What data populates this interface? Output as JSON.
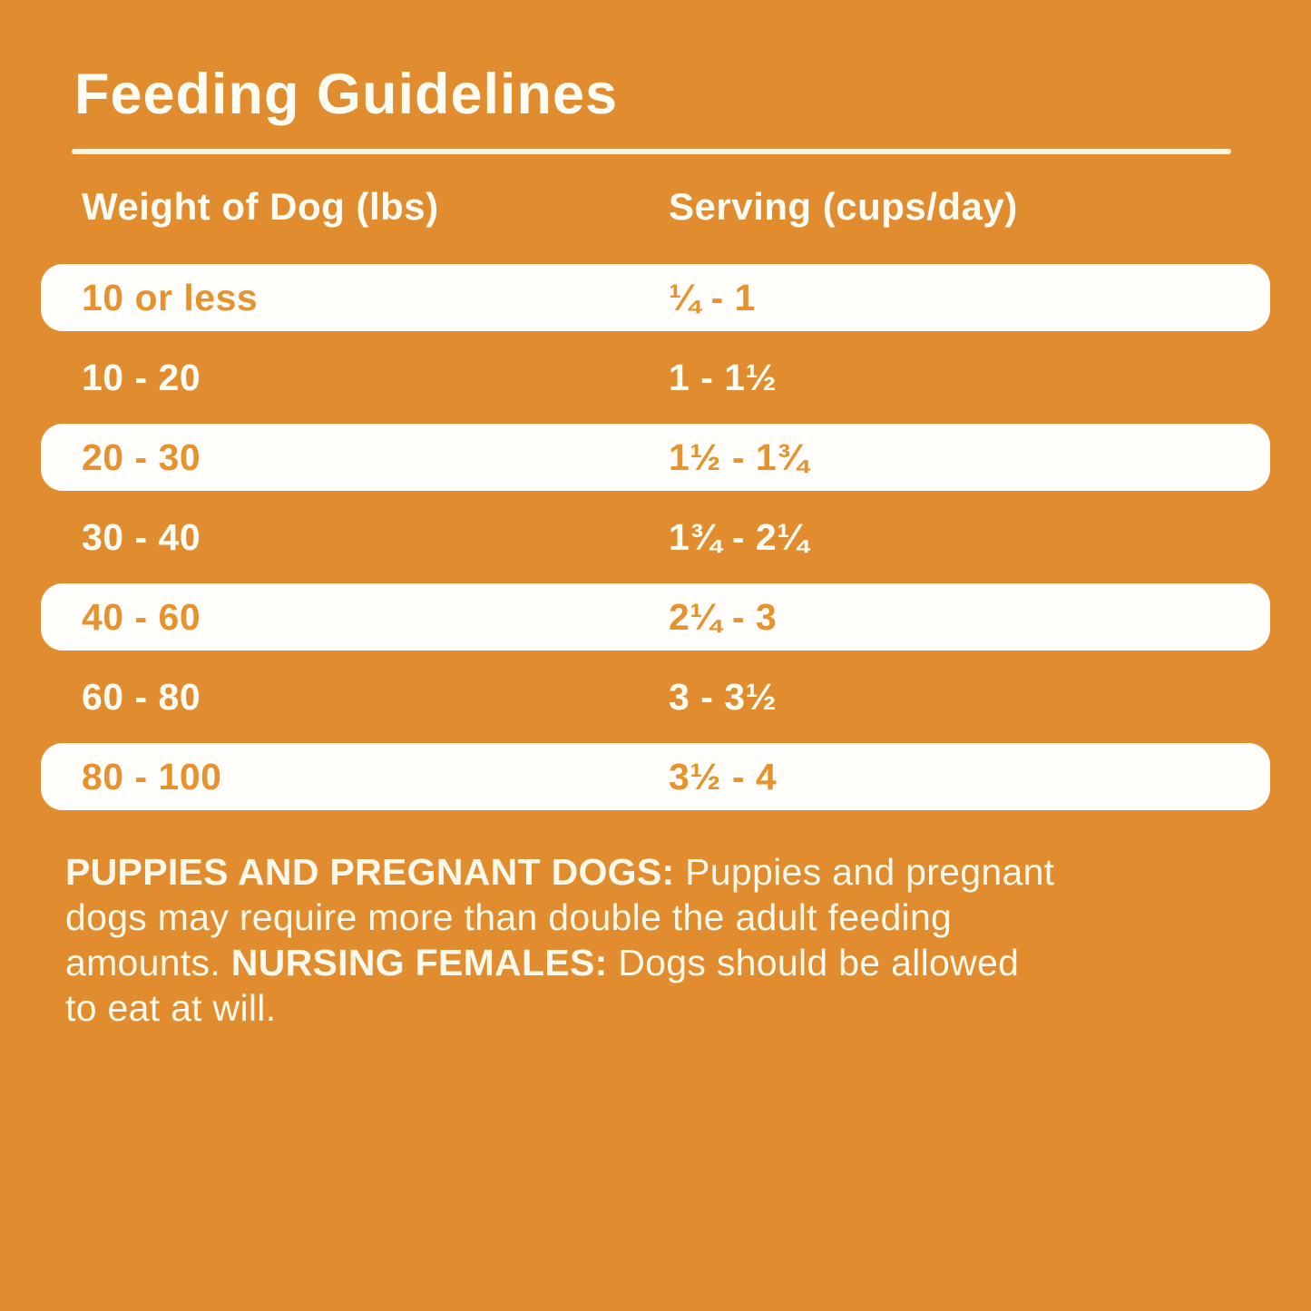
{
  "title": "Feeding Guidelines",
  "colors": {
    "background": "#e18c2e",
    "row_highlight": "#fffefb",
    "orange_text": "#e6932f",
    "light_text": "#fdfcf3",
    "divider": "#f9f3dc",
    "footer_text": "#fcf8ea"
  },
  "table": {
    "headers": [
      "Weight of Dog (lbs)",
      "Serving (cups/day)"
    ],
    "rows": [
      {
        "weight": "10 or less",
        "serving": "¼ - 1",
        "highlighted": true
      },
      {
        "weight": "10 - 20",
        "serving": "1 - 1½",
        "highlighted": false
      },
      {
        "weight": "20 - 30",
        "serving": "1½ - 1¾",
        "highlighted": true
      },
      {
        "weight": "30 - 40",
        "serving": "1¾ - 2¼",
        "highlighted": false
      },
      {
        "weight": "40 - 60",
        "serving": "2¼ - 3",
        "highlighted": true
      },
      {
        "weight": "60 - 80",
        "serving": "3 - 3½",
        "highlighted": false
      },
      {
        "weight": "80 - 100",
        "serving": "3½ - 4",
        "highlighted": true
      }
    ]
  },
  "footer": {
    "lines": [
      [
        {
          "text": "PUPPIES AND PREGNANT DOGS:",
          "bold": true
        },
        {
          "text": " Puppies and pregnant",
          "bold": false
        }
      ],
      [
        {
          "text": "dogs may require more than double the adult feeding",
          "bold": false
        }
      ],
      [
        {
          "text": "amounts. ",
          "bold": false
        },
        {
          "text": "NURSING FEMALES:",
          "bold": true
        },
        {
          "text": " Dogs should be allowed",
          "bold": false
        }
      ],
      [
        {
          "text": "to eat at will.",
          "bold": false
        }
      ]
    ]
  },
  "chart_data": {
    "type": "table",
    "title": "Feeding Guidelines",
    "columns": [
      "Weight of Dog (lbs)",
      "Serving (cups/day)"
    ],
    "rows": [
      [
        "10 or less",
        "¼ - 1"
      ],
      [
        "10 - 20",
        "1 - 1½"
      ],
      [
        "20 - 30",
        "1½ - 1¾"
      ],
      [
        "30 - 40",
        "1¾ - 2¼"
      ],
      [
        "40 - 60",
        "2¼ - 3"
      ],
      [
        "60 - 80",
        "3 - 3½"
      ],
      [
        "80 - 100",
        "3½ - 4"
      ]
    ]
  }
}
